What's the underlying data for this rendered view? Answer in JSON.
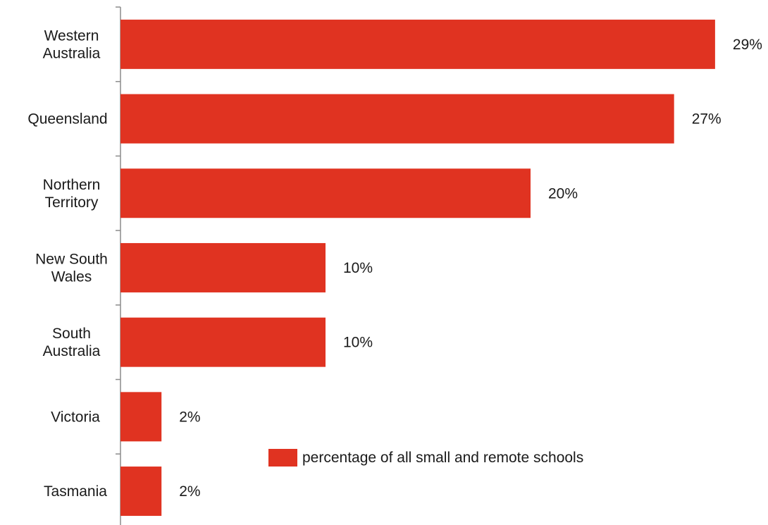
{
  "chart_data": {
    "type": "bar",
    "orientation": "horizontal",
    "categories": [
      [
        "Western",
        "Australia"
      ],
      [
        "Queensland"
      ],
      [
        "Northern",
        "Territory"
      ],
      [
        "New South",
        "Wales"
      ],
      [
        "South",
        "Australia"
      ],
      [
        "Victoria"
      ],
      [
        "Tasmania"
      ]
    ],
    "series": [
      {
        "name": "percentage of all small and remote schools",
        "values": [
          29,
          27,
          20,
          10,
          10,
          2,
          2
        ],
        "labels": [
          "29%",
          "27%",
          "20%",
          "10%",
          "10%",
          "2%",
          "2%"
        ],
        "color": "#e03321"
      }
    ],
    "title": "",
    "xlabel": "",
    "ylabel": "",
    "legend_position": "bottom-right",
    "grid": false
  }
}
